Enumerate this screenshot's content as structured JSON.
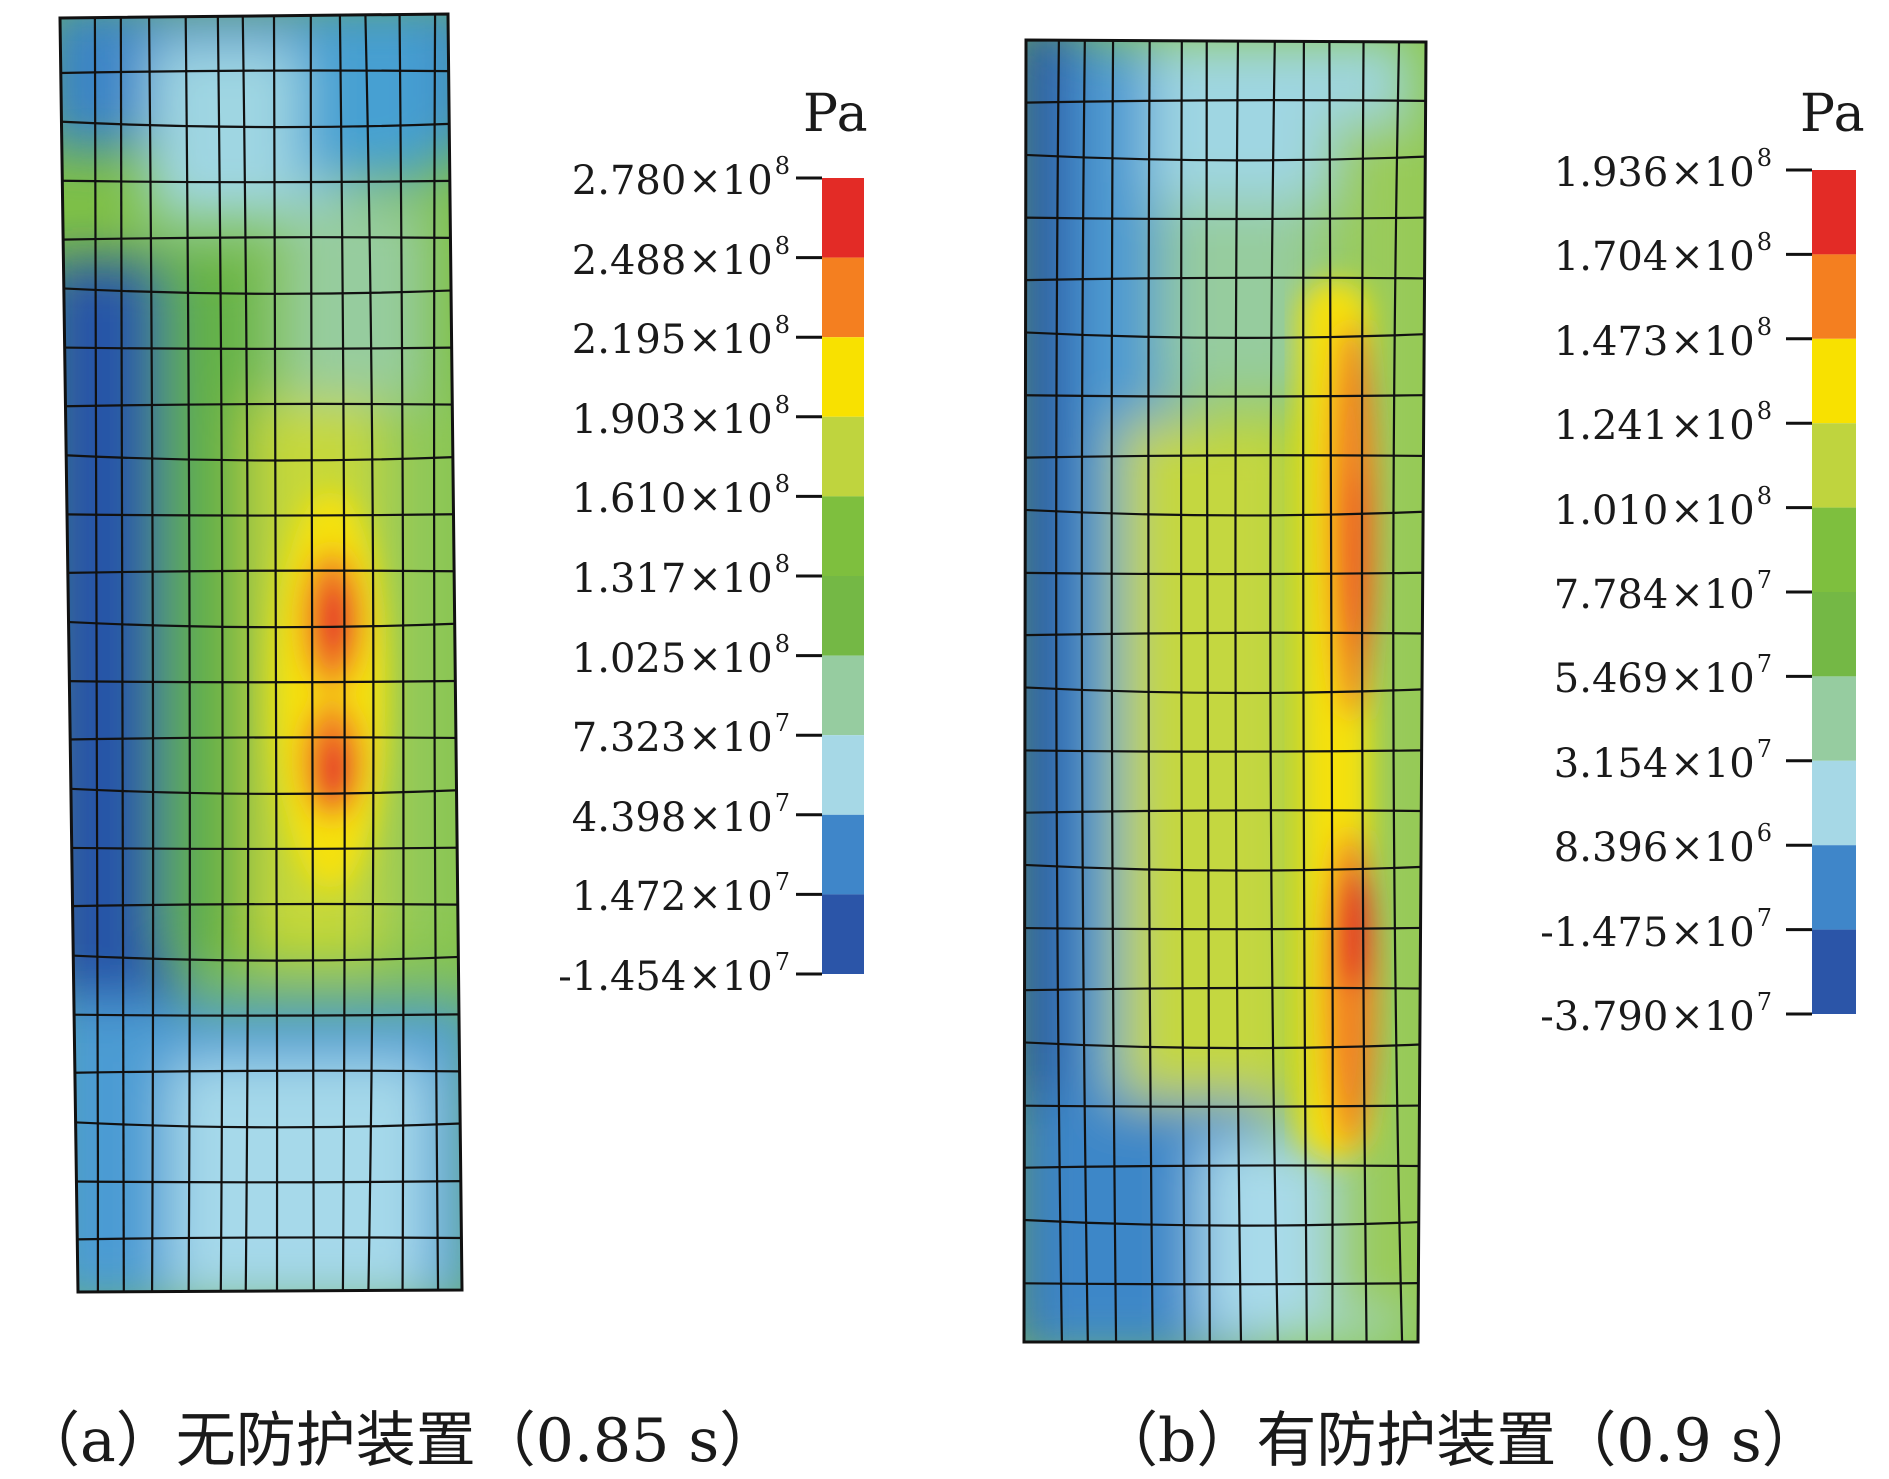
{
  "colors": {
    "scale": [
      "#2b55a8",
      "#3f86c9",
      "#a6d8e6",
      "#96cca0",
      "#74b845",
      "#7ebf3e",
      "#bfd43e",
      "#f8e100",
      "#f47f20",
      "#e32b26"
    ],
    "dark_blue": "#1e4fa3",
    "blue": "#3d87c8",
    "light_blue": "#a8daea",
    "mint": "#96cc9e",
    "green": "#79bb45",
    "yellow_green": "#c3d63b",
    "yellow": "#f5e10a",
    "orange": "#f28322",
    "red": "#e52a25",
    "mesh": "#111111"
  },
  "panels": [
    {
      "unit": "Pa",
      "ticks": [
        {
          "m": "2.780",
          "e": "8"
        },
        {
          "m": "2.488",
          "e": "8"
        },
        {
          "m": "2.195",
          "e": "8"
        },
        {
          "m": "1.903",
          "e": "8"
        },
        {
          "m": "1.610",
          "e": "8"
        },
        {
          "m": "1.317",
          "e": "8"
        },
        {
          "m": "1.025",
          "e": "8"
        },
        {
          "m": "7.323",
          "e": "7"
        },
        {
          "m": "4.398",
          "e": "7"
        },
        {
          "m": "1.472",
          "e": "7"
        },
        {
          "m": "-1.454",
          "e": "7"
        }
      ],
      "caption": "（a）无防护装置（0.85 s）"
    },
    {
      "unit": "Pa",
      "ticks": [
        {
          "m": "1.936",
          "e": "8"
        },
        {
          "m": "1.704",
          "e": "8"
        },
        {
          "m": "1.473",
          "e": "8"
        },
        {
          "m": "1.241",
          "e": "8"
        },
        {
          "m": "1.010",
          "e": "8"
        },
        {
          "m": "7.784",
          "e": "7"
        },
        {
          "m": "5.469",
          "e": "7"
        },
        {
          "m": "3.154",
          "e": "7"
        },
        {
          "m": "8.396",
          "e": "6"
        },
        {
          "m": "-1.475",
          "e": "7"
        },
        {
          "m": "-3.790",
          "e": "7"
        }
      ],
      "caption": "（b）有防护装置（0.9 s）"
    }
  ]
}
